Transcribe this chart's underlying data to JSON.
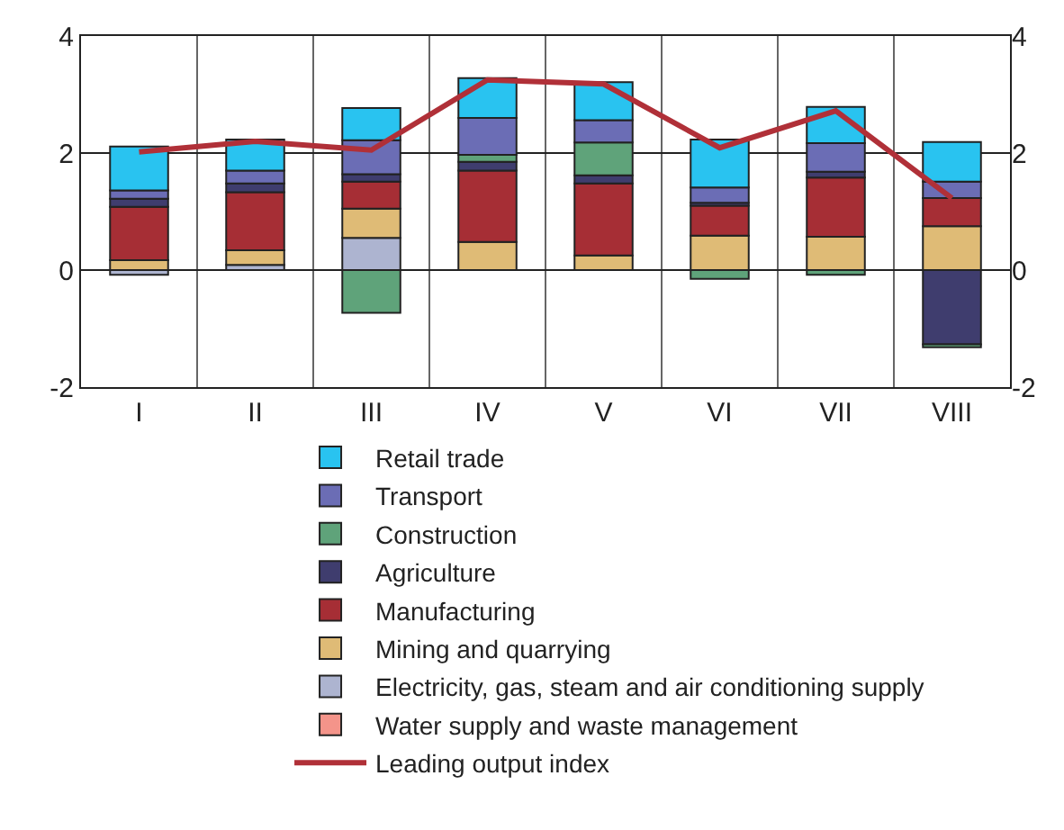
{
  "chart_data": {
    "type": "bar",
    "stacked": true,
    "categories": [
      "I",
      "II",
      "III",
      "IV",
      "V",
      "VI",
      "VII",
      "VIII"
    ],
    "ylim": [
      -2,
      4
    ],
    "yticks": [
      -2,
      0,
      2,
      4
    ],
    "y2lim": [
      -2,
      4
    ],
    "y2ticks": [
      -2,
      0,
      2,
      4
    ],
    "grid": true,
    "legend": "bottom",
    "series": [
      {
        "name": "Water supply and waste management",
        "color": "#f4948a",
        "values": [
          null,
          null,
          null,
          null,
          null,
          null,
          null,
          null
        ]
      },
      {
        "name": "Electricity, gas, steam and air conditioning supply",
        "color": "#adb4d0",
        "values": [
          -0.08,
          0.09,
          0.55,
          null,
          null,
          null,
          null,
          null
        ]
      },
      {
        "name": "Mining and quarrying",
        "color": "#dfbb76",
        "values": [
          0.17,
          0.25,
          0.5,
          0.48,
          0.25,
          0.59,
          0.57,
          0.75
        ]
      },
      {
        "name": "Manufacturing",
        "color": "#a62e35",
        "values": [
          0.91,
          0.99,
          0.46,
          1.22,
          1.23,
          0.51,
          1.01,
          0.48
        ]
      },
      {
        "name": "Agriculture",
        "color": "#3f3d6e",
        "values": [
          0.14,
          0.15,
          0.13,
          0.15,
          0.14,
          0.05,
          0.1,
          -1.27
        ]
      },
      {
        "name": "Construction",
        "color": "#5fa37a",
        "values": [
          null,
          null,
          -0.73,
          0.12,
          0.56,
          -0.15,
          -0.08,
          -0.05
        ]
      },
      {
        "name": "Transport",
        "color": "#6b6db5",
        "values": [
          0.14,
          0.22,
          0.58,
          0.63,
          0.38,
          0.26,
          0.49,
          0.28
        ]
      },
      {
        "name": "Retail trade",
        "color": "#29c3f0",
        "values": [
          0.75,
          0.53,
          0.55,
          0.68,
          0.65,
          0.82,
          0.62,
          0.68
        ]
      },
      {
        "name": "Leading output index",
        "type": "line",
        "color": "#b03038",
        "values": [
          2.02,
          2.2,
          2.05,
          3.25,
          3.18,
          2.09,
          2.72,
          1.23
        ]
      }
    ]
  }
}
